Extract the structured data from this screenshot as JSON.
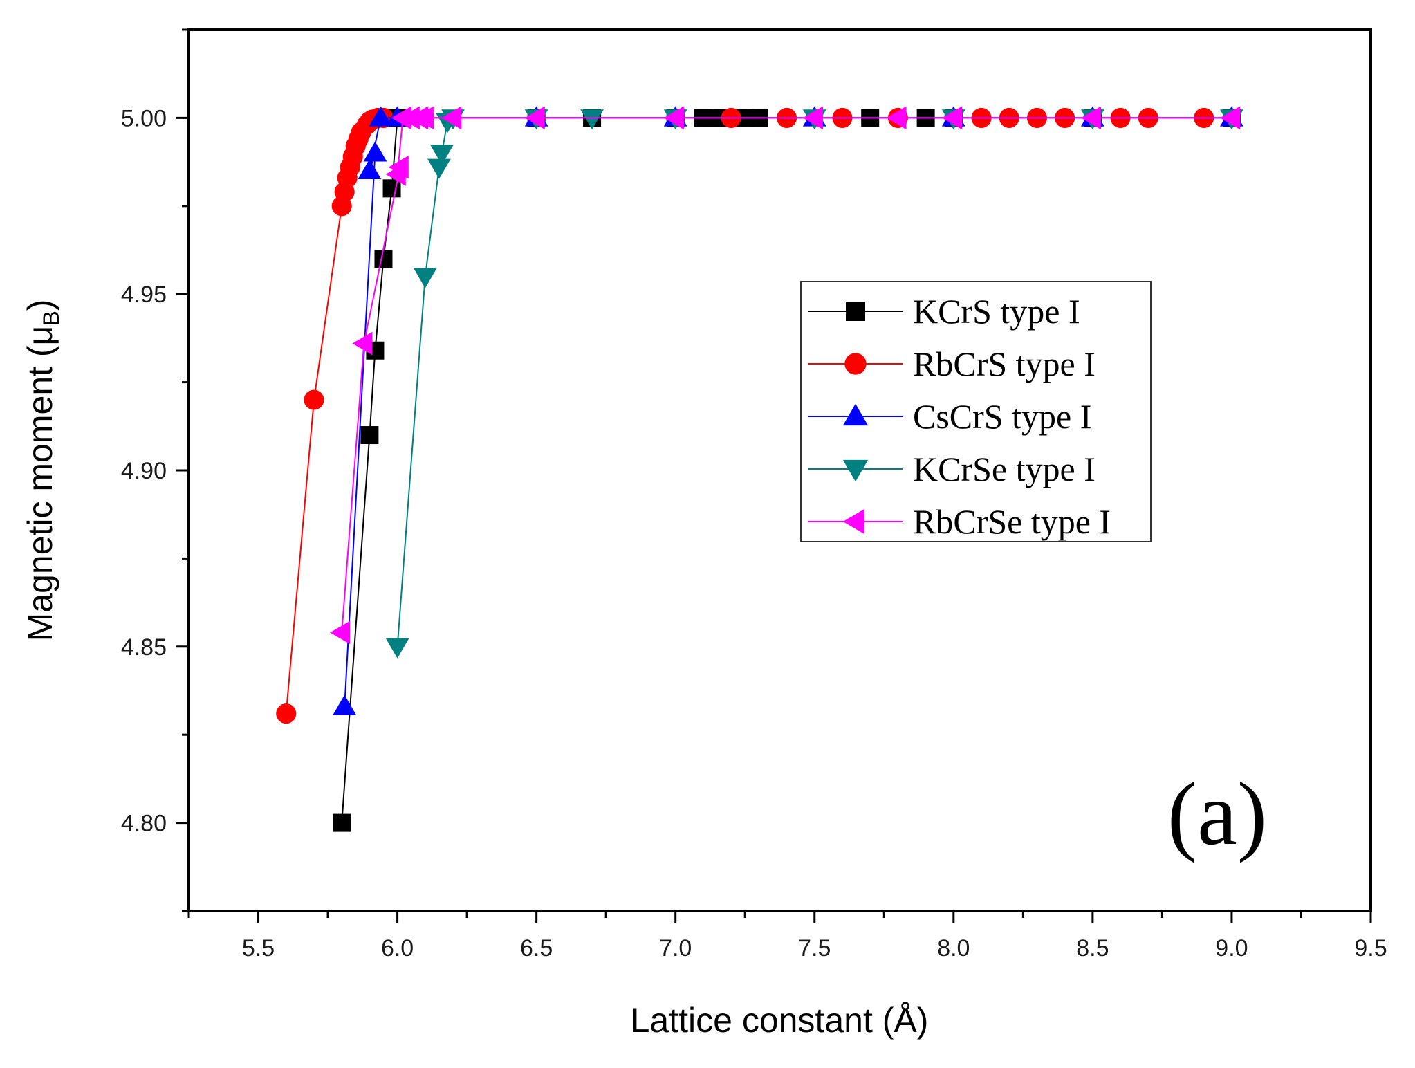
{
  "chart_data": {
    "type": "line",
    "title": "",
    "xlabel": "Lattice constant (Å)",
    "ylabel": "Magnetic moment (μB)",
    "ylabel_main": "Magnetic moment (",
    "ylabel_symbol": "μ",
    "ylabel_sub": "B",
    "ylabel_close": ")",
    "xlim": [
      5.25,
      9.5
    ],
    "ylim": [
      4.775,
      5.025
    ],
    "xticks": [
      5.5,
      6.0,
      6.5,
      7.0,
      7.5,
      8.0,
      8.5,
      9.0,
      9.5
    ],
    "xtick_labels": [
      "5.5",
      "6.0",
      "6.5",
      "7.0",
      "7.5",
      "8.0",
      "8.5",
      "9.0",
      "9.5"
    ],
    "xminor": [
      5.25,
      5.75,
      6.25,
      6.75,
      7.25,
      7.75,
      8.25,
      8.75,
      9.25
    ],
    "yticks": [
      4.8,
      4.85,
      4.9,
      4.95,
      5.0
    ],
    "ytick_labels": [
      "4.80",
      "4.85",
      "4.90",
      "4.95",
      "5.00"
    ],
    "yminor": [
      4.775,
      4.825,
      4.875,
      4.925,
      4.975,
      5.025
    ],
    "grid": false,
    "legend_position": "center-right",
    "annotation": "(a)",
    "series": [
      {
        "name": "KCrS type I",
        "color": "#000000",
        "marker": "square",
        "x": [
          5.8,
          5.9,
          5.92,
          5.95,
          5.98,
          6.0,
          6.5,
          6.7,
          7.0,
          7.1,
          7.13,
          7.15,
          7.2,
          7.25,
          7.3,
          7.7,
          7.9,
          8.0,
          8.5,
          9.0
        ],
        "y": [
          4.8,
          4.91,
          4.934,
          4.96,
          4.98,
          5.0,
          5.0,
          5.0,
          5.0,
          5.0,
          5.0,
          5.0,
          5.0,
          5.0,
          5.0,
          5.0,
          5.0,
          5.0,
          5.0,
          5.0
        ]
      },
      {
        "name": "RbCrS type I",
        "color": "#ff0000",
        "marker": "circle",
        "x": [
          5.6,
          5.7,
          5.8,
          5.81,
          5.82,
          5.83,
          5.84,
          5.85,
          5.86,
          5.87,
          5.89,
          5.9,
          5.91,
          5.93,
          5.95,
          7.2,
          7.4,
          7.6,
          7.8,
          8.1,
          8.2,
          8.3,
          8.4,
          8.6,
          8.7,
          8.9
        ],
        "y": [
          4.831,
          4.92,
          4.975,
          4.979,
          4.983,
          4.986,
          4.989,
          4.992,
          4.994,
          4.996,
          4.998,
          4.999,
          4.9995,
          5.0,
          5.0,
          5.0,
          5.0,
          5.0,
          5.0,
          5.0,
          5.0,
          5.0,
          5.0,
          5.0,
          5.0,
          5.0
        ]
      },
      {
        "name": "CsCrS type I",
        "color": "#0000ff",
        "marker": "triangle-up",
        "x": [
          5.81,
          5.9,
          5.92,
          5.94,
          6.0,
          6.5,
          7.0,
          7.5,
          8.0,
          8.5,
          9.0
        ],
        "y": [
          4.833,
          4.985,
          4.99,
          5.0,
          5.0,
          5.0,
          5.0,
          5.0,
          5.0,
          5.0,
          5.0
        ],
        "order": [
          0,
          2,
          1,
          3,
          4,
          5,
          6,
          7,
          8,
          9,
          10
        ]
      },
      {
        "name": "KCrSe type I",
        "color": "#008080",
        "marker": "triangle-down",
        "x": [
          6.0,
          6.1,
          6.15,
          6.16,
          6.18,
          6.2,
          6.5,
          6.7,
          7.0,
          7.5,
          8.0,
          8.5,
          9.0
        ],
        "y": [
          4.85,
          4.955,
          4.986,
          4.99,
          4.999,
          5.0,
          5.0,
          5.0,
          5.0,
          5.0,
          5.0,
          5.0,
          5.0
        ]
      },
      {
        "name": "RbCrSe type I",
        "color": "#ff00ff",
        "marker": "triangle-left",
        "x": [
          5.8,
          5.88,
          6.0,
          6.01,
          6.02,
          6.05,
          6.08,
          6.1,
          6.2,
          6.5,
          7.0,
          7.5,
          7.8,
          8.0,
          8.5,
          9.0
        ],
        "y": [
          4.854,
          4.936,
          4.984,
          4.986,
          5.0,
          5.0,
          5.0,
          5.0,
          5.0,
          5.0,
          5.0,
          5.0,
          5.0,
          5.0,
          5.0,
          5.0
        ],
        "order": [
          0,
          1,
          3,
          2,
          4,
          5,
          6,
          7,
          8,
          9,
          10,
          11,
          12,
          13,
          14,
          15
        ]
      }
    ]
  }
}
